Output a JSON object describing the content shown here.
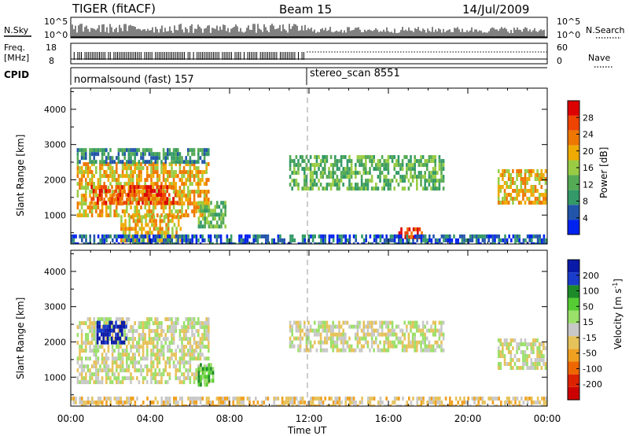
{
  "header": {
    "radar": "TIGER (fitACF)",
    "beam": "Beam 15",
    "date": "14/Jul/2009"
  },
  "strips": {
    "nsky_label": "N.Sky",
    "nsearch_label": "N.Search",
    "nsky_ticks": [
      "10^5",
      "10^0"
    ],
    "nsearch_ticks": [
      "10^5",
      "10^0"
    ],
    "freq_label": "Freq.",
    "freq_unit": "[MHz]",
    "freq_ticks": [
      "18",
      "8"
    ],
    "nave_label": "Nave",
    "nave_ticks": [
      "60",
      "0"
    ],
    "cpid_label": "CPID",
    "cpid_segments": [
      "normalsound (fast) 157",
      "stereo_scan 8551"
    ]
  },
  "colors": {
    "power": [
      "#0022ee",
      "#2255aa",
      "#339966",
      "#55aa55",
      "#99cc44",
      "#eeaa00",
      "#ee7700",
      "#ee4400",
      "#dd0000"
    ],
    "velocity": [
      "#0a1aa8",
      "#1a3ccc",
      "#1d8a2a",
      "#55cc33",
      "#9be06a",
      "#c8c8c8",
      "#e6c25a",
      "#f0a020",
      "#ee6600",
      "#dd2200",
      "#cc0000"
    ],
    "gray_ground": "#c8c8c8"
  },
  "chart_data": [
    {
      "type": "heatmap",
      "panel": "power",
      "ylabel": "Slant Range [km]",
      "xlabel": "Time UT",
      "ylim": [
        180,
        4600
      ],
      "xlim": [
        0,
        24
      ],
      "x_ticks": [
        "00:00",
        "04:00",
        "08:00",
        "12:00",
        "16:00",
        "20:00",
        "00:00"
      ],
      "y_ticks": [
        1000,
        2000,
        3000,
        4000
      ],
      "colorbar": {
        "label": "Power [dB]",
        "ticks": [
          4,
          8,
          12,
          16,
          20,
          24,
          28
        ]
      },
      "regions": [
        {
          "t": [
            0.3,
            6.9
          ],
          "r": [
            1000,
            2500
          ],
          "level": 5
        },
        {
          "t": [
            0.3,
            6.9
          ],
          "r": [
            2500,
            2900
          ],
          "level": 2
        },
        {
          "t": [
            1.0,
            5.5
          ],
          "r": [
            1350,
            1850
          ],
          "level": 7
        },
        {
          "t": [
            2.5,
            5.5
          ],
          "r": [
            300,
            1000
          ],
          "level": 5
        },
        {
          "t": [
            6.4,
            7.8
          ],
          "r": [
            700,
            1400
          ],
          "level": 3
        },
        {
          "t": [
            11.0,
            18.8
          ],
          "r": [
            1750,
            2700
          ],
          "level": 3
        },
        {
          "t": [
            16.5,
            17.7
          ],
          "r": [
            420,
            650
          ],
          "level": 7
        },
        {
          "t": [
            21.5,
            24.0
          ],
          "r": [
            1300,
            2300
          ],
          "level": 5
        },
        {
          "t": [
            0.0,
            24.0
          ],
          "r": [
            200,
            450
          ],
          "level": 1
        }
      ]
    },
    {
      "type": "heatmap",
      "panel": "velocity",
      "ylabel": "Slant Range [km]",
      "xlabel": "Time UT",
      "ylim": [
        180,
        4600
      ],
      "xlim": [
        0,
        24
      ],
      "x_ticks": [
        "00:00",
        "04:00",
        "08:00",
        "12:00",
        "16:00",
        "20:00",
        "00:00"
      ],
      "y_ticks": [
        1000,
        2000,
        3000,
        4000
      ],
      "colorbar": {
        "label": "Velocity [m s^-1]",
        "ticks": [
          200,
          100,
          50,
          15,
          -15,
          -50,
          -100,
          -200
        ]
      },
      "regions": [
        {
          "t": [
            0.3,
            6.9
          ],
          "r": [
            900,
            2700
          ],
          "level": 5
        },
        {
          "t": [
            1.3,
            2.8
          ],
          "r": [
            2000,
            2600
          ],
          "level": 0
        },
        {
          "t": [
            6.4,
            7.2
          ],
          "r": [
            800,
            1400
          ],
          "level": 3
        },
        {
          "t": [
            11.0,
            18.8
          ],
          "r": [
            1800,
            2600
          ],
          "level": 5
        },
        {
          "t": [
            21.5,
            24.0
          ],
          "r": [
            1300,
            2100
          ],
          "level": 5
        },
        {
          "t": [
            0.0,
            24.0
          ],
          "r": [
            200,
            450
          ],
          "level": 6
        }
      ]
    }
  ]
}
